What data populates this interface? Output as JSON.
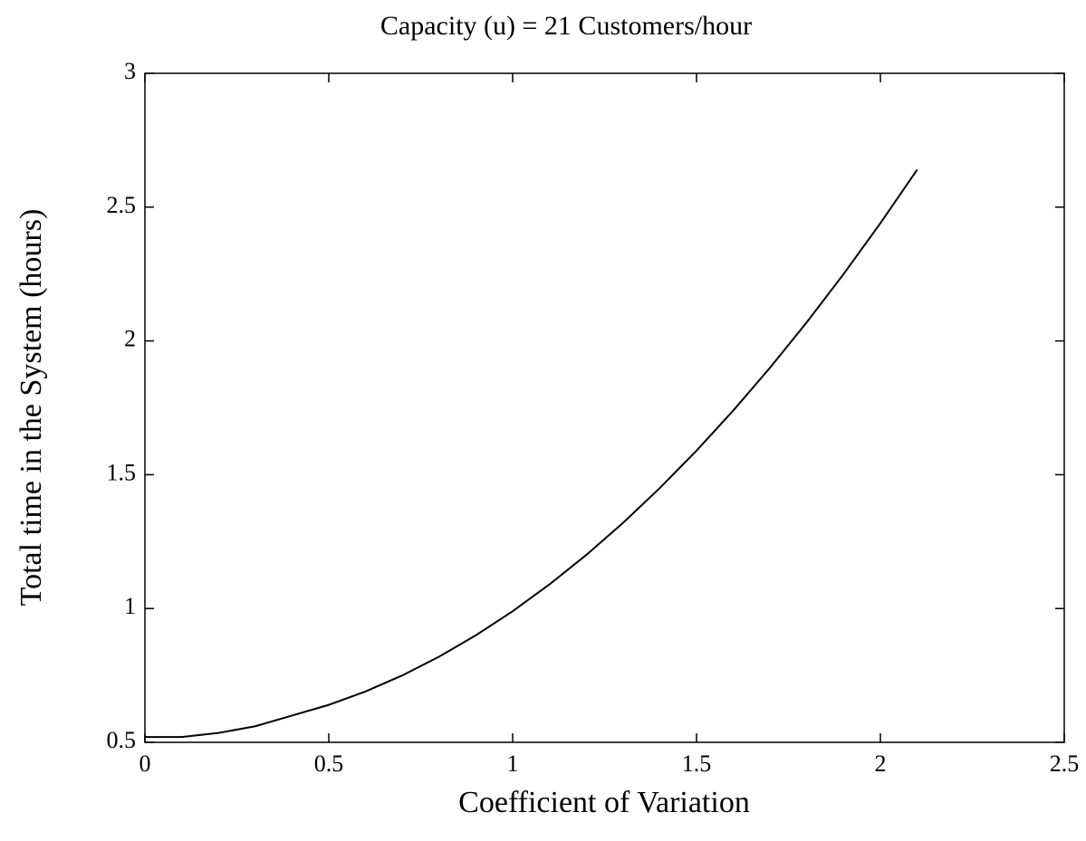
{
  "chart_data": {
    "type": "line",
    "title": "Capacity (u) = 21 Customers/hour",
    "x_label": "Coefficient of Variation",
    "y_label": "Total time in the System (hours)",
    "x": [
      0,
      0.1,
      0.2,
      0.3,
      0.4,
      0.5,
      0.6,
      0.7,
      0.8,
      0.9,
      1.0,
      1.1,
      1.2,
      1.3,
      1.4,
      1.5,
      1.6,
      1.7,
      1.8,
      1.9,
      2.0,
      2.1
    ],
    "series": [
      {
        "name": "Total time",
        "color": "#000000",
        "values": [
          0.52,
          0.52,
          0.535,
          0.56,
          0.6,
          0.64,
          0.69,
          0.75,
          0.82,
          0.9,
          0.99,
          1.09,
          1.2,
          1.32,
          1.45,
          1.59,
          1.74,
          1.9,
          2.07,
          2.25,
          2.44,
          2.64
        ]
      }
    ],
    "xlim": [
      0,
      2.5
    ],
    "xticks": [
      0,
      0.5,
      1,
      1.5,
      2,
      2.5
    ],
    "ylim": [
      0.5,
      3
    ],
    "yticks": [
      0.5,
      1,
      1.5,
      2,
      2.5,
      3
    ],
    "grid": false
  }
}
